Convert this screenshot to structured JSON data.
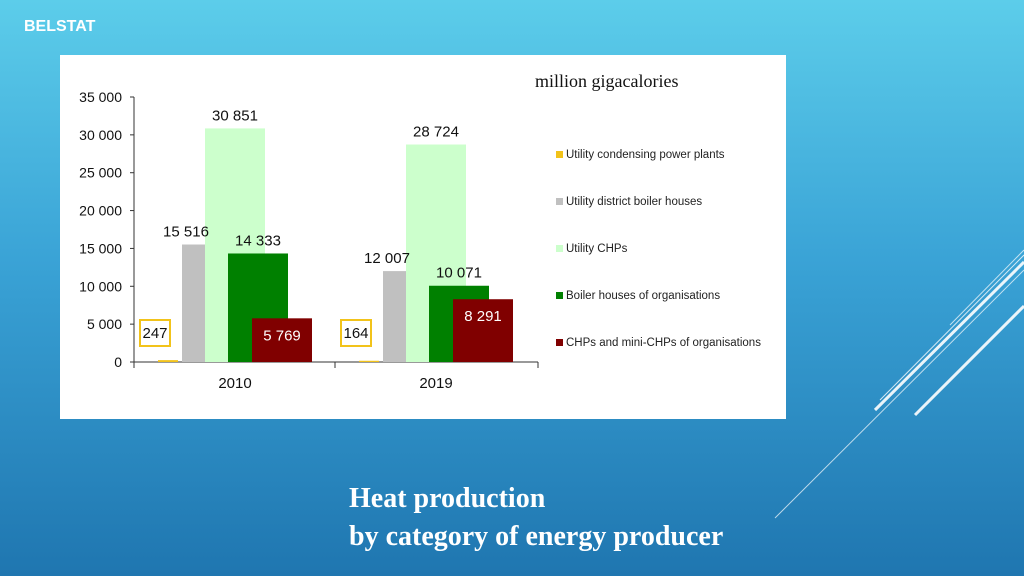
{
  "brand": "BELSTAT",
  "caption": {
    "line1": "Heat production",
    "line2": "by category of energy producer"
  },
  "colors": {
    "utility_condensing": "#f2c31a",
    "utility_boiler": "#c0c0c0",
    "utility_chp": "#ccffcc",
    "boiler_org": "#008000",
    "chp_org": "#800000",
    "highlight_box": "#f2c31a"
  },
  "chart_data": {
    "type": "bar",
    "title": "",
    "unit_label": "million gigacalories",
    "categories": [
      "2010",
      "2019"
    ],
    "ylim": [
      0,
      35000
    ],
    "yticks": [
      "0",
      "5 000",
      "10 000",
      "15 000",
      "20 000",
      "25 000",
      "30 000",
      "35 000"
    ],
    "ytick_values": [
      0,
      5000,
      10000,
      15000,
      20000,
      25000,
      30000,
      35000
    ],
    "legend_position": "right",
    "grid": false,
    "series": [
      {
        "name": "Utility condensing power plants",
        "values": [
          247,
          164
        ],
        "labels": [
          "247",
          "164"
        ]
      },
      {
        "name": "Utility district boiler houses",
        "values": [
          15516,
          12007
        ],
        "labels": [
          "15 516",
          "12 007"
        ]
      },
      {
        "name": "Utility CHPs",
        "values": [
          30851,
          28724
        ],
        "labels": [
          "30 851",
          "28 724"
        ]
      },
      {
        "name": "Boiler houses of organisations",
        "values": [
          14333,
          10071
        ],
        "labels": [
          "14 333",
          "10 071"
        ]
      },
      {
        "name": "CHPs and mini-CHPs of organisations",
        "values": [
          5769,
          8291
        ],
        "labels": [
          "5 769",
          "8 291"
        ]
      }
    ]
  }
}
